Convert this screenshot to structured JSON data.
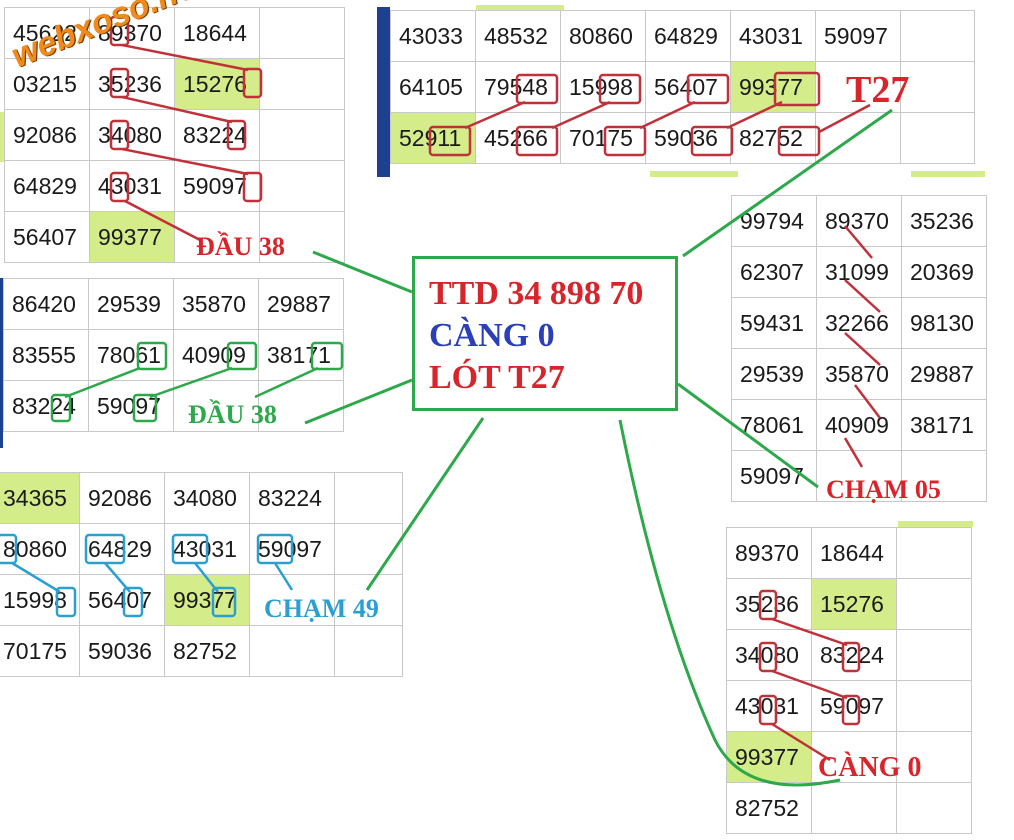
{
  "colors": {
    "highlight": "#d4ec8a",
    "red": "#d7252b",
    "blue": "#2a3fb8",
    "green": "#2da84a",
    "teal": "#2a9fd0",
    "orange": "#f08a1a"
  },
  "watermark": "webxoso.net",
  "center": {
    "line1": "TTD 34 898 70",
    "line2": "CÀNG 0",
    "line3": "LÓT T27"
  },
  "labels": {
    "dau38_red": "ĐẦU 38",
    "dau38_green": "ĐẦU 38",
    "t27": "T27",
    "cham05": "CHẠM 05",
    "cham49": "CHẠM 49",
    "cang0": "CÀNG 0"
  },
  "table_a": [
    [
      "45622",
      "89370",
      "18644"
    ],
    [
      "03215",
      "35236",
      "15276"
    ],
    [
      "92086",
      "34080",
      "83224"
    ],
    [
      "64829",
      "43031",
      "59097"
    ],
    [
      "56407",
      "99377",
      ""
    ]
  ],
  "table_b": [
    [
      "43033",
      "48532",
      "80860",
      "64829",
      "43031",
      "59097"
    ],
    [
      "64105",
      "79548",
      "15998",
      "56407",
      "99377",
      ""
    ],
    [
      "52911",
      "45266",
      "70175",
      "59036",
      "82752",
      ""
    ]
  ],
  "table_c": [
    [
      "86420",
      "29539",
      "35870",
      "29887"
    ],
    [
      "83555",
      "78061",
      "40909",
      "38171"
    ],
    [
      "83224",
      "59097",
      "",
      ""
    ]
  ],
  "table_d": [
    [
      "99794",
      "89370",
      "35236"
    ],
    [
      "62307",
      "31099",
      "20369"
    ],
    [
      "59431",
      "32266",
      "98130"
    ],
    [
      "29539",
      "35870",
      "29887"
    ],
    [
      "78061",
      "40909",
      "38171"
    ],
    [
      "59097",
      "",
      ""
    ]
  ],
  "table_e": [
    [
      "34365",
      "92086",
      "34080",
      "83224"
    ],
    [
      "80860",
      "64829",
      "43031",
      "59097"
    ],
    [
      "15998",
      "56407",
      "99377",
      ""
    ],
    [
      "70175",
      "59036",
      "82752",
      ""
    ]
  ],
  "table_f": [
    [
      "89370",
      "18644"
    ],
    [
      "35236",
      "15276"
    ],
    [
      "34080",
      "83224"
    ],
    [
      "43031",
      "59097"
    ],
    [
      "99377",
      ""
    ],
    [
      "82752",
      ""
    ]
  ]
}
